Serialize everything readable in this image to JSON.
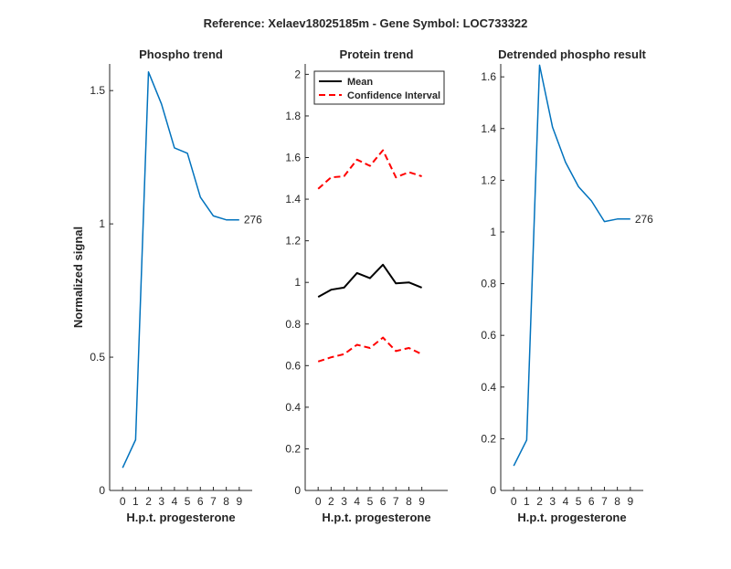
{
  "figure": {
    "title": "Reference:  Xelaev18025185m - Gene Symbol:  LOC733322"
  },
  "chart_data": [
    {
      "id": "phospho",
      "type": "line",
      "title": "Phospho trend",
      "xlabel": "H.p.t. progesterone",
      "ylabel": "Normalized signal",
      "xlim": [
        -1,
        10
      ],
      "ylim": [
        0,
        1.6
      ],
      "xticks": [
        0,
        1,
        2,
        3,
        4,
        5,
        6,
        7,
        8,
        9
      ],
      "yticks": [
        0,
        0.5,
        1,
        1.5
      ],
      "ytick_labels": [
        "0",
        "0.5",
        "1",
        "1.5"
      ],
      "series": [
        {
          "color": "#0072BD",
          "dash": "solid",
          "x": [
            0,
            1,
            2,
            3,
            4,
            5,
            6,
            7,
            8,
            9
          ],
          "y": [
            0.085,
            0.19,
            1.57,
            1.45,
            1.285,
            1.265,
            1.1,
            1.03,
            1.015,
            1.015
          ],
          "end_label": "276"
        }
      ]
    },
    {
      "id": "protein",
      "type": "line",
      "title": "Protein trend",
      "xlabel": "H.p.t. progesterone",
      "ylabel": "",
      "xlim": [
        -1,
        10
      ],
      "ylim": [
        0,
        2.05
      ],
      "xticks": [
        0,
        1,
        2,
        3,
        4,
        5,
        6,
        7,
        8,
        9
      ],
      "xtick_labels": [
        "0",
        "2",
        "3",
        "4",
        "5",
        "6",
        "7",
        "8",
        "9"
      ],
      "xtick_positions": [
        0,
        1,
        2,
        3,
        4,
        5,
        6,
        7,
        8
      ],
      "yticks": [
        0,
        0.2,
        0.4,
        0.6,
        0.8,
        1,
        1.2,
        1.4,
        1.6,
        1.8,
        2
      ],
      "ytick_labels": [
        "0",
        "0.2",
        "0.4",
        "0.6",
        "0.8",
        "1",
        "1.2",
        "1.4",
        "1.6",
        "1.8",
        "2"
      ],
      "legend": {
        "placement": "top-left",
        "entries": [
          {
            "label": "Mean",
            "color": "#000000",
            "dash": "solid"
          },
          {
            "label": "Confidence Interval",
            "color": "#FF0000",
            "dash": "dashed"
          }
        ]
      },
      "series": [
        {
          "color": "#000000",
          "dash": "solid",
          "x": [
            0,
            1,
            2,
            3,
            4,
            5,
            6,
            7,
            8
          ],
          "y": [
            0.93,
            0.965,
            0.975,
            1.045,
            1.02,
            1.085,
            0.995,
            1.0,
            0.975
          ]
        },
        {
          "color": "#FF0000",
          "dash": "dashed",
          "x": [
            0,
            1,
            2,
            3,
            4,
            5,
            6,
            7,
            8
          ],
          "y": [
            1.45,
            1.505,
            1.51,
            1.59,
            1.56,
            1.635,
            1.505,
            1.53,
            1.51
          ]
        },
        {
          "color": "#FF0000",
          "dash": "dashed",
          "x": [
            0,
            1,
            2,
            3,
            4,
            5,
            6,
            7,
            8
          ],
          "y": [
            0.62,
            0.64,
            0.655,
            0.7,
            0.685,
            0.735,
            0.67,
            0.685,
            0.655
          ]
        }
      ]
    },
    {
      "id": "detrended",
      "type": "line",
      "title": "Detrended phospho result",
      "xlabel": "H.p.t. progesterone",
      "ylabel": "",
      "xlim": [
        -1,
        10
      ],
      "ylim": [
        0,
        1.65
      ],
      "xticks": [
        0,
        1,
        2,
        3,
        4,
        5,
        6,
        7,
        8,
        9
      ],
      "yticks": [
        0,
        0.2,
        0.4,
        0.6,
        0.8,
        1,
        1.2,
        1.4,
        1.6
      ],
      "ytick_labels": [
        "0",
        "0.2",
        "0.4",
        "0.6",
        "0.8",
        "1",
        "1.2",
        "1.4",
        "1.6"
      ],
      "series": [
        {
          "color": "#0072BD",
          "dash": "solid",
          "x": [
            0,
            1,
            2,
            3,
            4,
            5,
            6,
            7,
            8,
            9
          ],
          "y": [
            0.095,
            0.195,
            1.645,
            1.405,
            1.27,
            1.175,
            1.12,
            1.04,
            1.05,
            1.05
          ],
          "end_label": "276"
        }
      ]
    }
  ]
}
